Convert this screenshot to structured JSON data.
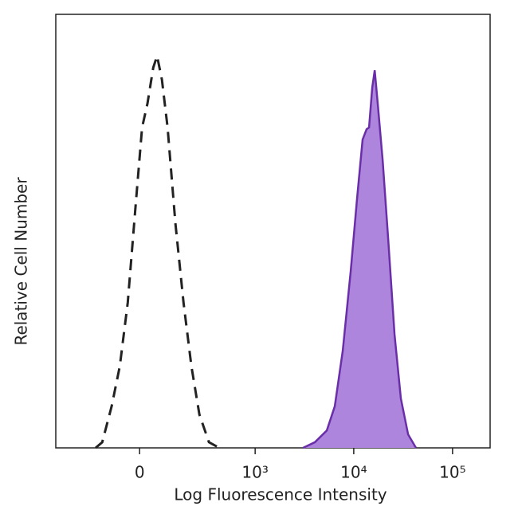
{
  "chart_data": {
    "type": "histogram-overlay",
    "xlabel": "Log Fluorescence Intensity",
    "ylabel": "Relative Cell Number",
    "xscale": "biexponential",
    "xlim": [
      -470,
      240000
    ],
    "xticks": [
      0,
      {
        "value": 1000,
        "label": "10³"
      },
      {
        "value": 10000,
        "label": "10⁴"
      },
      {
        "value": 100000,
        "label": "10⁵"
      }
    ],
    "ylim": [
      0,
      100
    ],
    "series": [
      {
        "color": "#222222",
        "dash": true,
        "x": [
          -165,
          -134,
          -95,
          -65,
          -38,
          -13,
          8,
          25,
          44,
          57,
          74,
          95,
          127,
          165,
          207,
          257,
          329,
          424
        ],
        "values": [
          0,
          1.3,
          9.6,
          18.8,
          33.5,
          55.5,
          73.9,
          79.4,
          87.7,
          90.4,
          84.9,
          73.9,
          51.8,
          33.5,
          18.8,
          7.7,
          1.3,
          0
        ]
      },
      {
        "color": "#6a2fa8",
        "fill": "#ad85dc",
        "x": [
          3060,
          4040,
          5340,
          6430,
          7740,
          9320,
          10800,
          12300,
          13500,
          14300,
          15400,
          16300,
          17500,
          19600,
          22300,
          25900,
          30000,
          35500,
          42700
        ],
        "values": [
          0,
          1.3,
          4.0,
          9.6,
          22.4,
          40.8,
          57.4,
          71.1,
          73.5,
          73.9,
          83.1,
          87.1,
          79.4,
          66.5,
          48.2,
          26.1,
          11.4,
          3.1,
          0
        ]
      }
    ]
  }
}
